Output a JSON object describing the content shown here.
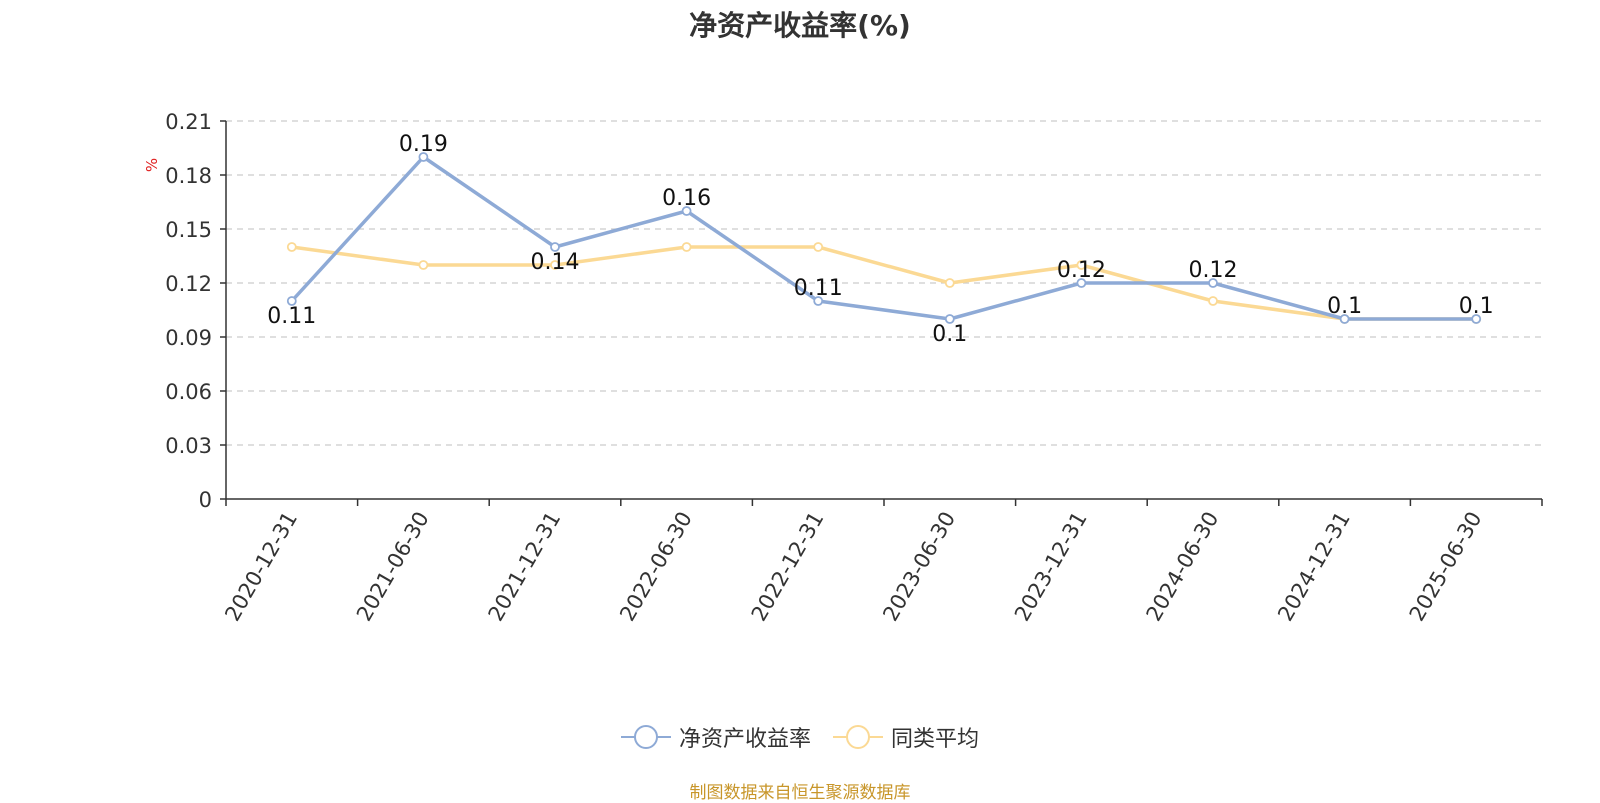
{
  "chart_data": {
    "type": "line",
    "title": "净资产收益率(%)",
    "ylabel": "%",
    "xlabel": "",
    "categories": [
      "2020-12-31",
      "2021-06-30",
      "2021-12-31",
      "2022-06-30",
      "2022-12-31",
      "2023-06-30",
      "2023-12-31",
      "2024-06-30",
      "2024-12-31",
      "2025-06-30"
    ],
    "ylim": [
      0,
      0.21
    ],
    "yticks": [
      "0",
      "0.03",
      "0.06",
      "0.09",
      "0.12",
      "0.15",
      "0.18",
      "0.21"
    ],
    "grid": true,
    "legend_position": "bottom",
    "series": [
      {
        "name": "净资产收益率",
        "color": "#8eaad6",
        "values": [
          0.11,
          0.19,
          0.14,
          0.16,
          0.11,
          0.1,
          0.12,
          0.12,
          0.1,
          0.1
        ],
        "labels": [
          "0.11",
          "0.19",
          "0.14",
          "0.16",
          "0.11",
          "0.1",
          "0.12",
          "0.12",
          "0.1",
          "0.1"
        ]
      },
      {
        "name": "同类平均",
        "color": "#fbd994",
        "values": [
          0.14,
          0.13,
          0.13,
          0.14,
          0.14,
          0.12,
          0.13,
          0.11,
          0.1,
          0.1
        ]
      }
    ]
  },
  "footer": {
    "source": "制图数据来自恒生聚源数据库"
  }
}
